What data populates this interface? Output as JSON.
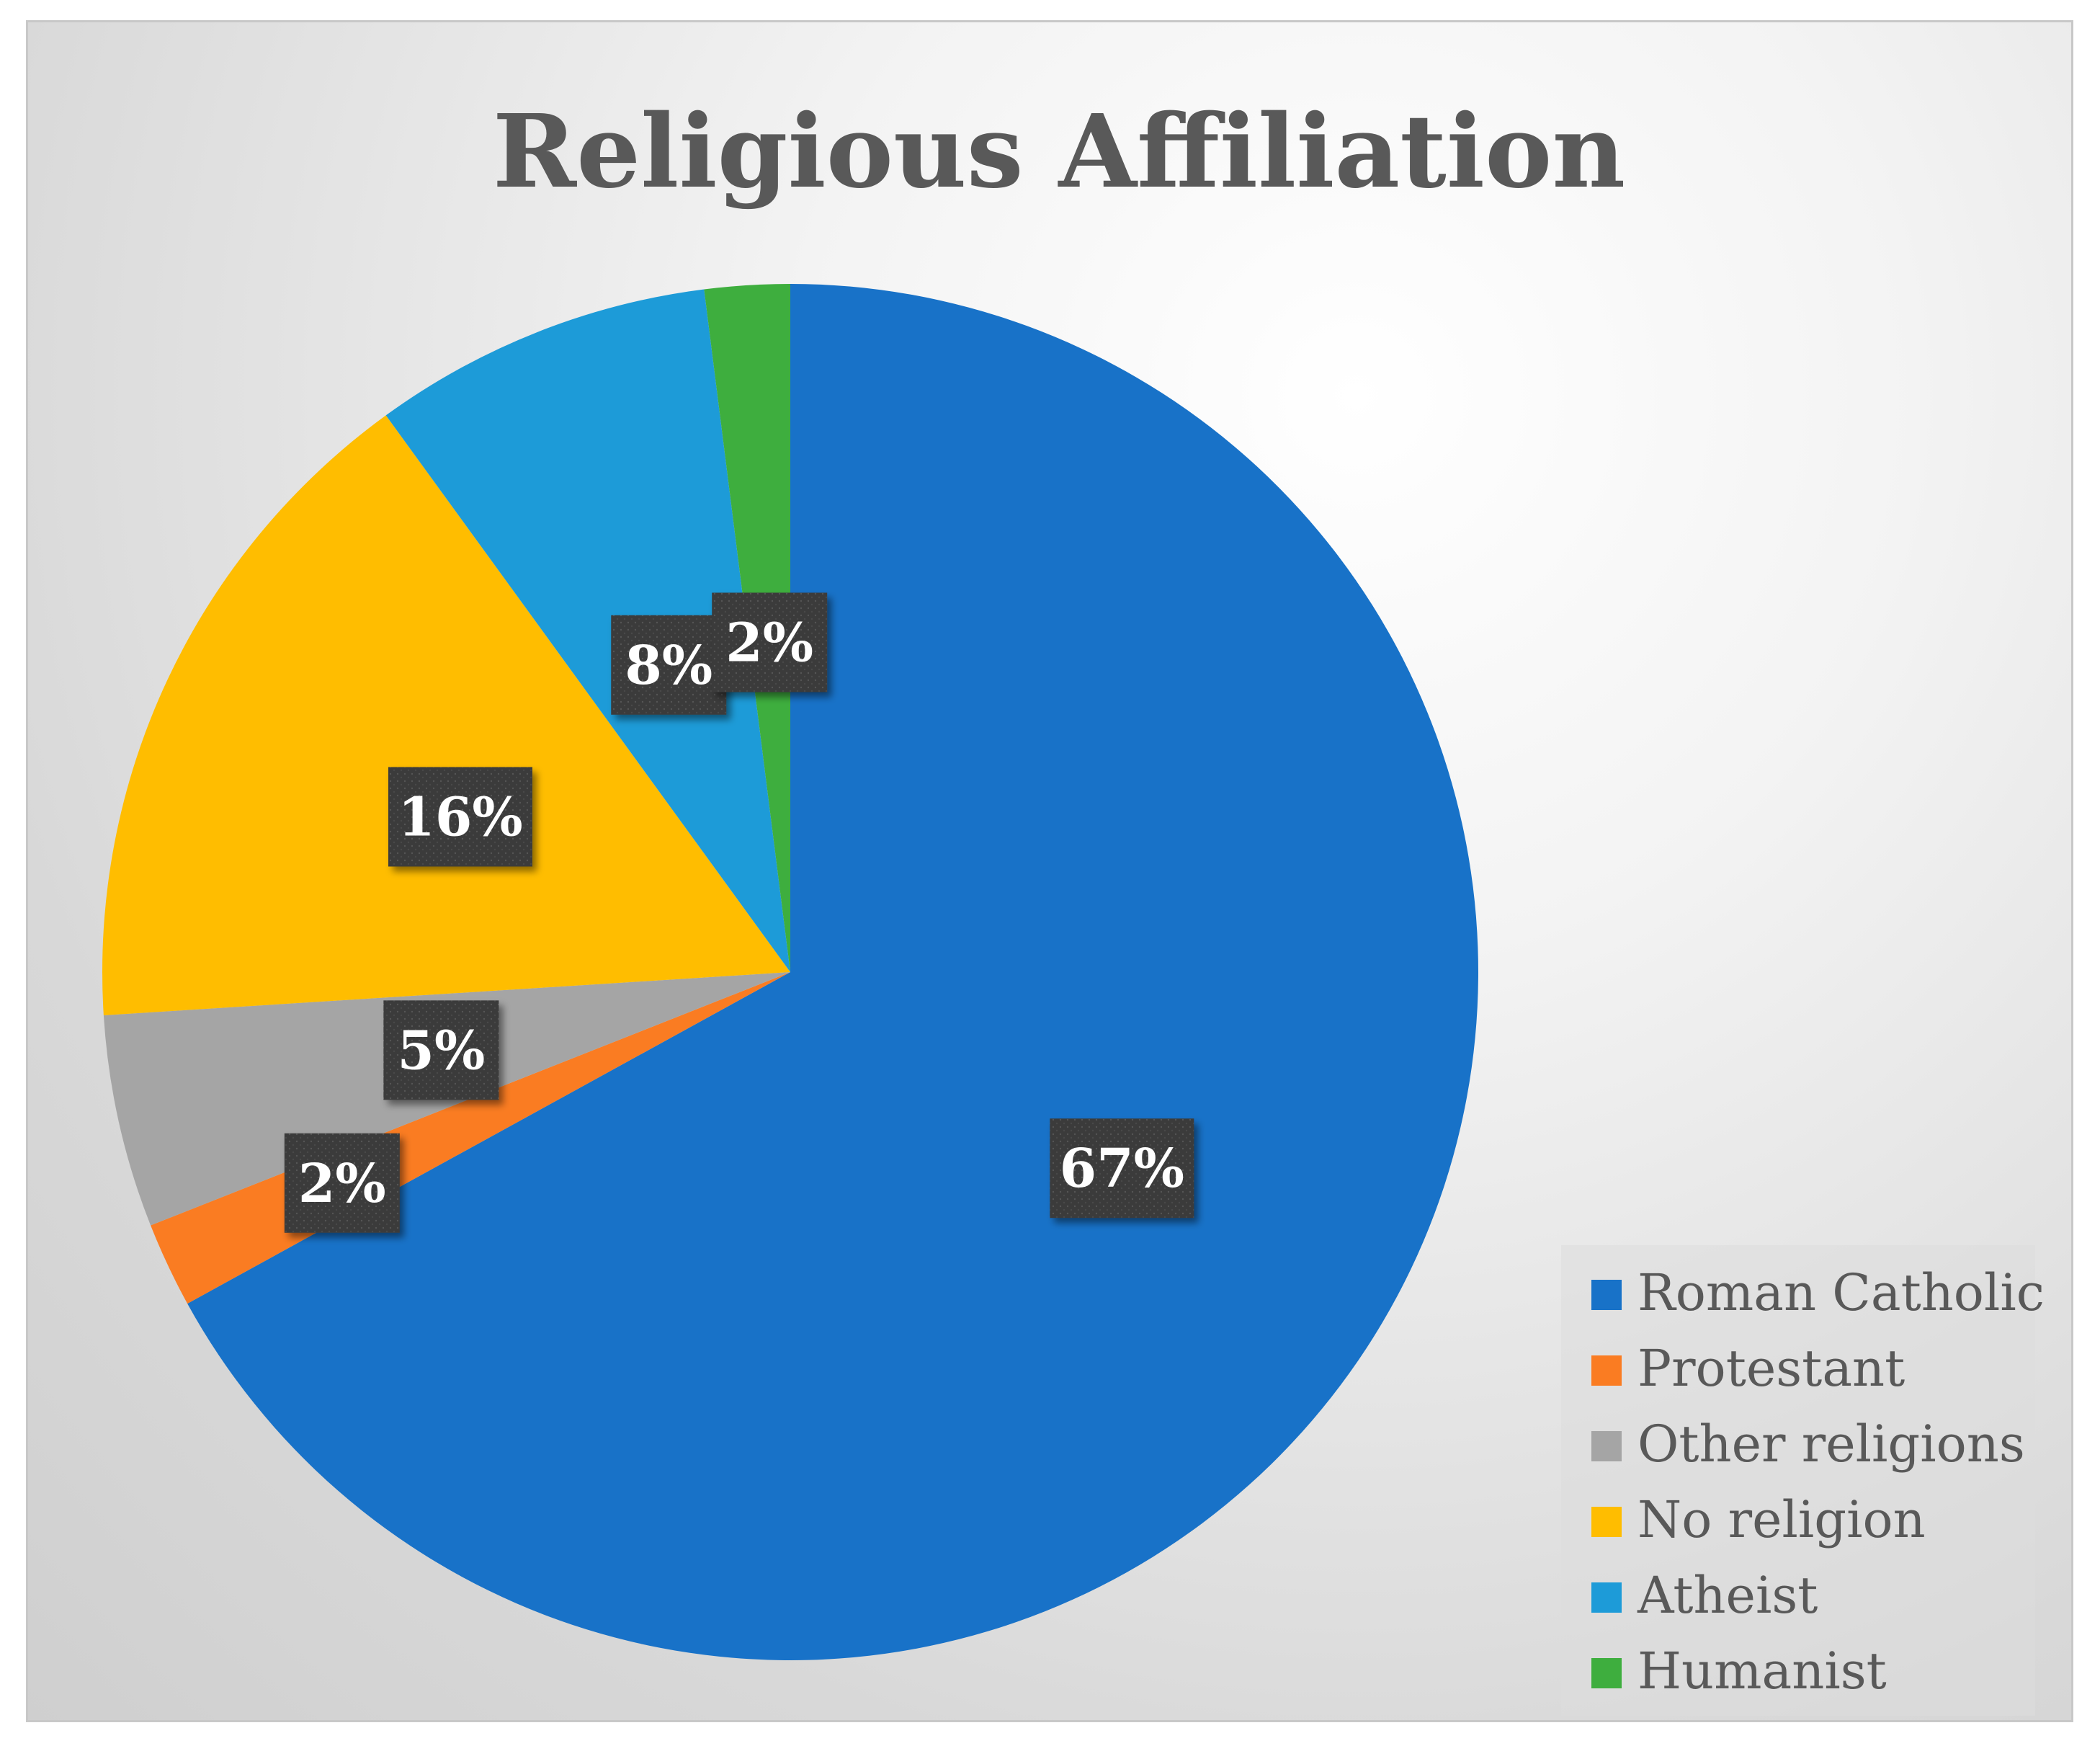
{
  "chart_data": {
    "type": "pie",
    "title": "Religious Affiliation",
    "slices": [
      {
        "name": "Roman Catholic",
        "value": 67,
        "label": "67%",
        "color": "#1872c8"
      },
      {
        "name": "Protestant",
        "value": 2,
        "label": "2%",
        "color": "#fa7c22"
      },
      {
        "name": "Other religions",
        "value": 5,
        "label": "5%",
        "color": "#a5a5a5"
      },
      {
        "name": "No religion",
        "value": 16,
        "label": "16%",
        "color": "#ffbd00"
      },
      {
        "name": "Atheist",
        "value": 8,
        "label": "8%",
        "color": "#1d9bd8"
      },
      {
        "name": "Humanist",
        "value": 2,
        "label": "2%",
        "color": "#3eae3e"
      }
    ],
    "start_angle_deg": 0,
    "direction": "clockwise",
    "legend_position": "bottom-right",
    "data_label_style": {
      "background": "#3a3a3a",
      "text_color": "#ffffff"
    }
  }
}
